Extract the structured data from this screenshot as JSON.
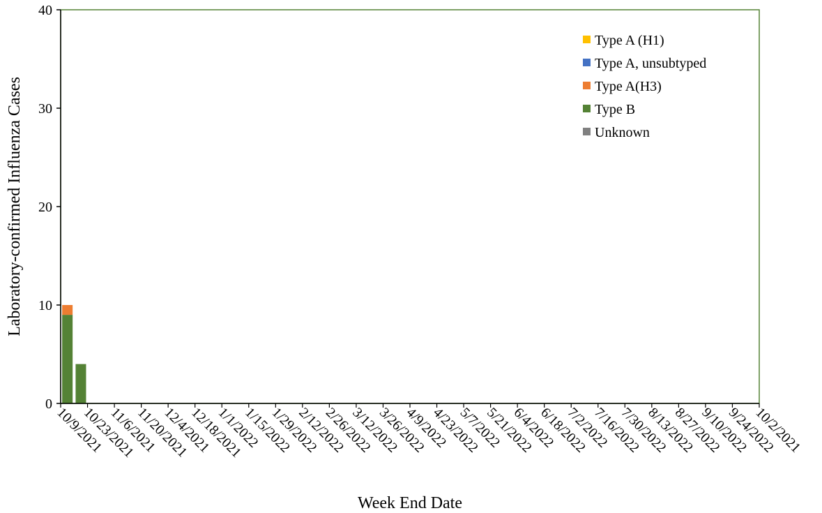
{
  "chart_data": {
    "type": "bar",
    "stacked": true,
    "xlabel": "Week End Date",
    "ylabel": "Laboratory-confirmed Influenza Cases",
    "ylim": [
      0,
      40
    ],
    "yticks": [
      0,
      10,
      20,
      30,
      40
    ],
    "grid": false,
    "legend_position": "top-right",
    "tick_labels": [
      "10/9/2021",
      "10/23/2021",
      "11/6/2021",
      "11/20/2021",
      "12/4/2021",
      "12/18/2021",
      "1/1/2022",
      "1/15/2022",
      "1/29/2022",
      "2/12/2022",
      "2/26/2022",
      "3/12/2022",
      "3/26/2022",
      "4/9/2022",
      "4/23/2022",
      "5/7/2022",
      "5/21/2022",
      "6/4/2022",
      "6/18/2022",
      "7/2/2022",
      "7/16/2022",
      "7/30/2022",
      "8/13/2022",
      "8/27/2022",
      "9/10/2022",
      "9/24/2022",
      "10/2/2021"
    ],
    "x": [
      "10/9/2021",
      "10/16/2021"
    ],
    "series": [
      {
        "name": "Type A (H1)",
        "color": "#FFC000",
        "values": [
          0,
          0
        ]
      },
      {
        "name": "Type A, unsubtyped",
        "color": "#4472C4",
        "values": [
          0,
          0
        ]
      },
      {
        "name": "Type A(H3)",
        "color": "#ED7D31",
        "values": [
          1,
          0
        ]
      },
      {
        "name": "Type B",
        "color": "#548235",
        "values": [
          9,
          4
        ]
      },
      {
        "name": "Unknown",
        "color": "#808080",
        "values": [
          0,
          0
        ]
      }
    ],
    "legend_order": [
      "Type A (H1)",
      "Type A, unsubtyped",
      "Type A(H3)",
      "Type B",
      "Unknown"
    ],
    "plot_border_color": "#548235"
  }
}
